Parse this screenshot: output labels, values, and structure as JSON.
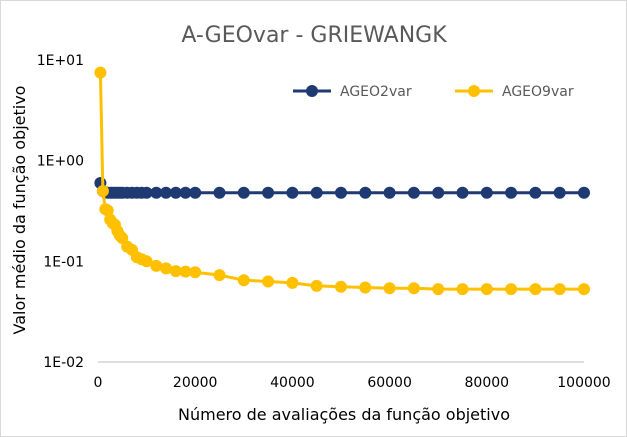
{
  "chart_data": {
    "type": "line",
    "title": "A-GEOvar - GRIEWANGK",
    "xlabel": "Número de avaliações da função objetivo",
    "ylabel": "Valor médio da função objetivo",
    "xlim": [
      0,
      100000
    ],
    "ylim": [
      0.01,
      10
    ],
    "y_scale": "log",
    "x_ticks": [
      0,
      20000,
      40000,
      60000,
      80000,
      100000
    ],
    "x_tick_labels": [
      "0",
      "20000",
      "40000",
      "60000",
      "80000",
      "100000"
    ],
    "y_ticks": [
      0.01,
      0.1,
      1,
      10
    ],
    "y_tick_labels": [
      "1E-02",
      "1E-01",
      "1E+00",
      "1E+01"
    ],
    "grid": false,
    "legend_position": "top-right",
    "series": [
      {
        "name": "AGEO2var",
        "color": "#1f3a73",
        "x": [
          500,
          1000,
          1500,
          2000,
          2500,
          3000,
          3500,
          4000,
          4500,
          5000,
          6000,
          7000,
          8000,
          9000,
          10000,
          12000,
          14000,
          16000,
          18000,
          20000,
          25000,
          30000,
          35000,
          40000,
          45000,
          50000,
          55000,
          60000,
          65000,
          70000,
          75000,
          80000,
          85000,
          90000,
          95000,
          100000
        ],
        "y": [
          0.6,
          0.5,
          0.485,
          0.48,
          0.48,
          0.48,
          0.48,
          0.48,
          0.48,
          0.48,
          0.48,
          0.48,
          0.48,
          0.48,
          0.48,
          0.48,
          0.48,
          0.48,
          0.48,
          0.48,
          0.48,
          0.48,
          0.48,
          0.48,
          0.48,
          0.48,
          0.48,
          0.48,
          0.48,
          0.48,
          0.48,
          0.48,
          0.48,
          0.48,
          0.48,
          0.48
        ]
      },
      {
        "name": "AGEO9var",
        "color": "#ffc000",
        "x": [
          500,
          1000,
          1500,
          2000,
          2500,
          3000,
          3500,
          4000,
          4500,
          5000,
          6000,
          7000,
          8000,
          9000,
          10000,
          12000,
          14000,
          16000,
          18000,
          20000,
          25000,
          30000,
          35000,
          40000,
          45000,
          50000,
          55000,
          60000,
          65000,
          70000,
          75000,
          80000,
          85000,
          90000,
          95000,
          100000
        ],
        "y": [
          7.5,
          0.5,
          0.33,
          0.32,
          0.26,
          0.24,
          0.23,
          0.2,
          0.18,
          0.17,
          0.14,
          0.13,
          0.11,
          0.105,
          0.1,
          0.09,
          0.085,
          0.08,
          0.079,
          0.078,
          0.073,
          0.065,
          0.063,
          0.061,
          0.057,
          0.056,
          0.055,
          0.054,
          0.054,
          0.053,
          0.053,
          0.053,
          0.053,
          0.053,
          0.053,
          0.053
        ]
      }
    ]
  }
}
